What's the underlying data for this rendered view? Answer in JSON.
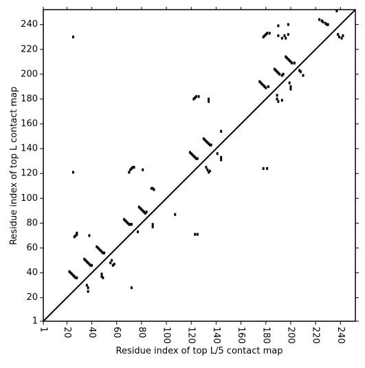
{
  "chart_data": {
    "type": "scatter",
    "xlabel": "Residue index of top L/5 contact map",
    "ylabel": "Residue index of top L contact map",
    "xlim": [
      1,
      252
    ],
    "ylim": [
      1,
      252
    ],
    "xticks": [
      1,
      20,
      40,
      60,
      80,
      100,
      120,
      140,
      160,
      180,
      200,
      220,
      240
    ],
    "yticks": [
      1,
      20,
      40,
      60,
      80,
      100,
      120,
      140,
      160,
      180,
      200,
      220,
      240
    ],
    "color": "#000000",
    "diagonal": true,
    "x": [
      22,
      23,
      24,
      25,
      26,
      27,
      28,
      25,
      25,
      26,
      27,
      28,
      28,
      34,
      35,
      36,
      37,
      38,
      39,
      40,
      36,
      37,
      37,
      38,
      44,
      45,
      46,
      47,
      48,
      49,
      50,
      48,
      49,
      48,
      55,
      56,
      57,
      58,
      66,
      67,
      68,
      69,
      70,
      71,
      72,
      70,
      71,
      72,
      73,
      74,
      72,
      78,
      79,
      80,
      81,
      82,
      83,
      84,
      77,
      81,
      88,
      89,
      90,
      89,
      89,
      107,
      119,
      120,
      121,
      122,
      123,
      124,
      125,
      122,
      123,
      124,
      126,
      123,
      125,
      130,
      131,
      132,
      133,
      134,
      135,
      136,
      132,
      133,
      134,
      135,
      134,
      134,
      141,
      144,
      144,
      144,
      178,
      179,
      180,
      181,
      183,
      190,
      190,
      193,
      195,
      196,
      198,
      198,
      223,
      225,
      226,
      228,
      229,
      230,
      237,
      175,
      176,
      177,
      178,
      179,
      180,
      182,
      187,
      188,
      189,
      190,
      191,
      193,
      194,
      189,
      189,
      190,
      193,
      196,
      197,
      198,
      199,
      200,
      201,
      203,
      199,
      200,
      200,
      207,
      208,
      210,
      178,
      181,
      238,
      239,
      241,
      242
    ],
    "values": [
      41,
      40,
      39,
      38,
      37,
      36,
      36,
      121,
      230,
      69,
      70,
      71,
      72,
      51,
      50,
      49,
      48,
      47,
      46,
      46,
      30,
      28,
      25,
      70,
      61,
      60,
      59,
      58,
      57,
      56,
      56,
      37,
      36,
      39,
      48,
      50,
      46,
      47,
      83,
      82,
      81,
      80,
      79,
      79,
      79,
      121,
      123,
      124,
      125,
      125,
      28,
      93,
      92,
      91,
      90,
      89,
      88,
      89,
      73,
      123,
      108,
      108,
      107,
      79,
      77,
      87,
      137,
      136,
      135,
      134,
      133,
      132,
      132,
      180,
      181,
      182,
      182,
      71,
      71,
      148,
      147,
      146,
      145,
      144,
      143,
      143,
      125,
      123,
      121,
      122,
      178,
      180,
      136,
      154,
      131,
      133,
      230,
      231,
      232,
      233,
      233,
      239,
      231,
      229,
      231,
      229,
      240,
      232,
      244,
      243,
      242,
      241,
      240,
      240,
      251,
      194,
      193,
      192,
      191,
      190,
      189,
      190,
      204,
      203,
      202,
      201,
      200,
      199,
      200,
      183,
      180,
      178,
      179,
      214,
      213,
      212,
      211,
      210,
      209,
      209,
      193,
      190,
      188,
      203,
      202,
      199,
      124,
      124,
      232,
      230,
      229,
      231
    ]
  }
}
